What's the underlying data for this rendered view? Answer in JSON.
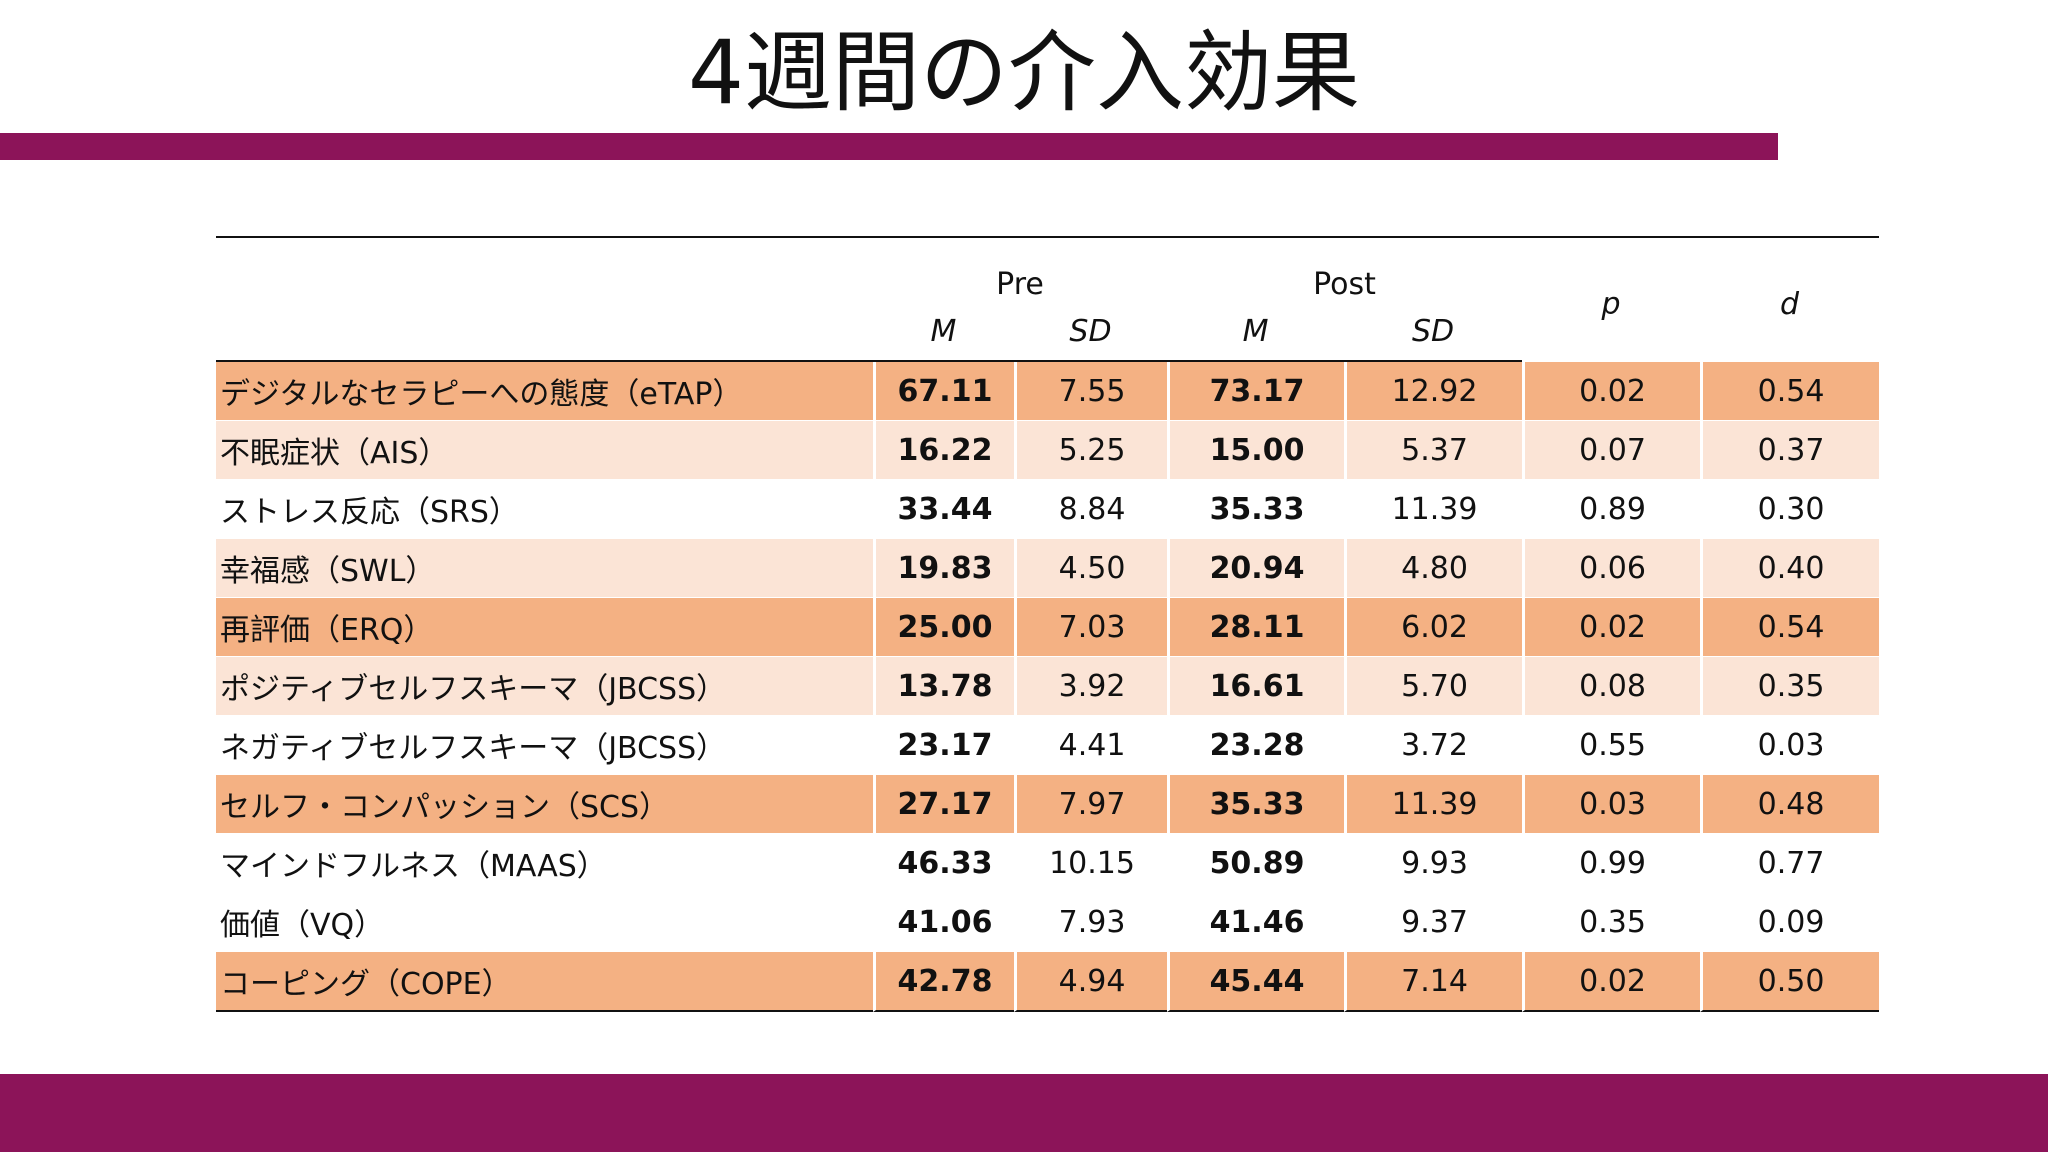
{
  "title": "4週間の介入効果",
  "table": {
    "group_headers": {
      "pre": "Pre",
      "post": "Post",
      "p": "p",
      "d": "d"
    },
    "sub_headers": {
      "pre_m": "M",
      "pre_sd": "SD",
      "post_m": "M",
      "post_sd": "SD"
    },
    "rows": [
      {
        "label": "デジタルなセラピーへの態度（eTAP）",
        "pre_m": "67.11",
        "pre_sd": "7.55",
        "post_m": "73.17",
        "post_sd": "12.92",
        "p": "0.02",
        "d": "0.54",
        "shade": "dark"
      },
      {
        "label": "不眠症状（AIS）",
        "pre_m": "16.22",
        "pre_sd": "5.25",
        "post_m": "15.00",
        "post_sd": "5.37",
        "p": "0.07",
        "d": "0.37",
        "shade": "light"
      },
      {
        "label": "ストレス反応（SRS）",
        "pre_m": "33.44",
        "pre_sd": "8.84",
        "post_m": "35.33",
        "post_sd": "11.39",
        "p": "0.89",
        "d": "0.30",
        "shade": "none"
      },
      {
        "label": "幸福感（SWL）",
        "pre_m": "19.83",
        "pre_sd": "4.50",
        "post_m": "20.94",
        "post_sd": "4.80",
        "p": "0.06",
        "d": "0.40",
        "shade": "light"
      },
      {
        "label": "再評価（ERQ）",
        "pre_m": "25.00",
        "pre_sd": "7.03",
        "post_m": "28.11",
        "post_sd": "6.02",
        "p": "0.02",
        "d": "0.54",
        "shade": "dark"
      },
      {
        "label": "ポジティブセルフスキーマ（JBCSS）",
        "pre_m": "13.78",
        "pre_sd": "3.92",
        "post_m": "16.61",
        "post_sd": "5.70",
        "p": "0.08",
        "d": "0.35",
        "shade": "light"
      },
      {
        "label": "ネガティブセルフスキーマ（JBCSS）",
        "pre_m": "23.17",
        "pre_sd": "4.41",
        "post_m": "23.28",
        "post_sd": "3.72",
        "p": "0.55",
        "d": "0.03",
        "shade": "none"
      },
      {
        "label": "セルフ・コンパッション（SCS）",
        "pre_m": "27.17",
        "pre_sd": "7.97",
        "post_m": "35.33",
        "post_sd": "11.39",
        "p": "0.03",
        "d": "0.48",
        "shade": "dark"
      },
      {
        "label": "マインドフルネス（MAAS）",
        "pre_m": "46.33",
        "pre_sd": "10.15",
        "post_m": "50.89",
        "post_sd": "9.93",
        "p": "0.99",
        "d": "0.77",
        "shade": "none"
      },
      {
        "label": "価値（VQ）",
        "pre_m": "41.06",
        "pre_sd": "7.93",
        "post_m": "41.46",
        "post_sd": "9.37",
        "p": "0.35",
        "d": "0.09",
        "shade": "none"
      },
      {
        "label": "コーピング（COPE）",
        "pre_m": "42.78",
        "pre_sd": "4.94",
        "post_m": "45.44",
        "post_sd": "7.14",
        "p": "0.02",
        "d": "0.50",
        "shade": "dark"
      }
    ]
  },
  "colors": {
    "accent_bar": "#8c1459",
    "row_dark": "#f4b183",
    "row_light": "#fbe4d6"
  }
}
